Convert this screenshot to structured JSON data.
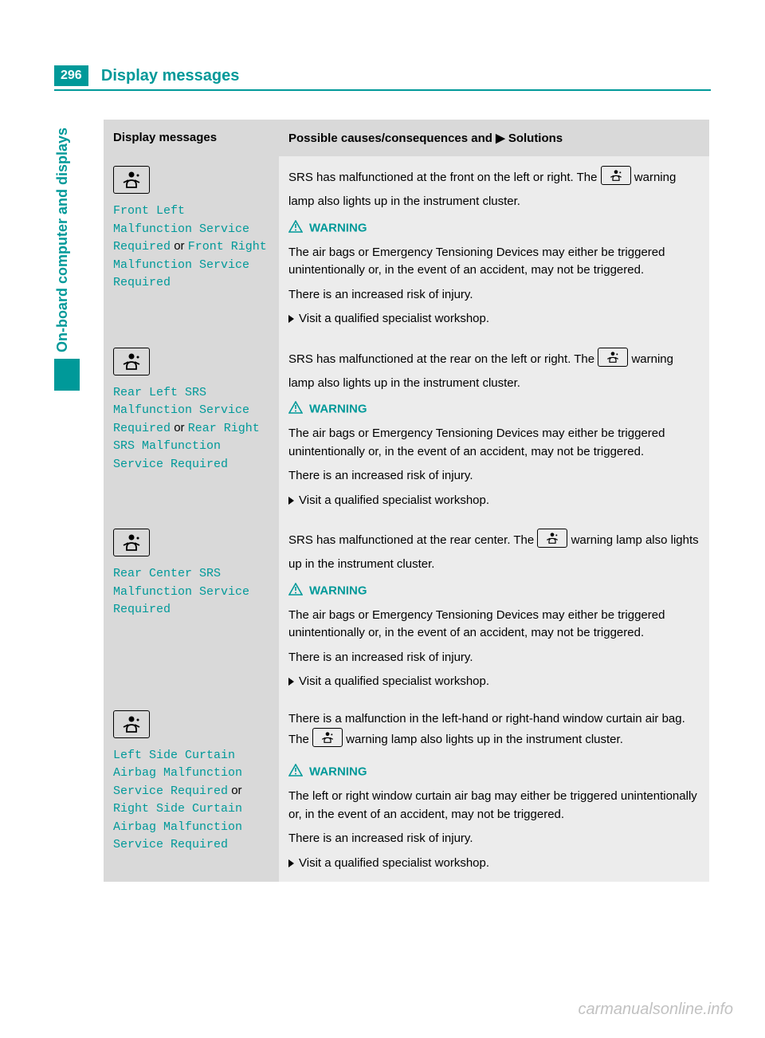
{
  "page": {
    "number": "296",
    "title": "Display messages",
    "sideLabel": "On-board computer and displays"
  },
  "table": {
    "headers": {
      "left": "Display messages",
      "right": "Possible causes/consequences and ▶ Solutions"
    },
    "warningLabel": "WARNING",
    "rows": [
      {
        "msg1": "Front Left Malfunction Service Required",
        "or": "or",
        "msg2": "Front Right Malfunction Service Required",
        "intro1": "SRS has malfunctioned at the front on the left or right. The ",
        "intro2": " warning lamp also lights up in the instrument cluster.",
        "warn1": "The air bags or Emergency Tensioning Devices may either be triggered unintentionally or, in the event of an accident, may not be triggered.",
        "warn2": "There is an increased risk of injury.",
        "sol": "Visit a qualified specialist workshop."
      },
      {
        "msg1": "Rear Left SRS Malfunction Service Required",
        "or": "or",
        "msg2": "Rear Right SRS Malfunction Service Required",
        "intro1": "SRS has malfunctioned at the rear on the left or right. The ",
        "intro2": " warning lamp also lights up in the instrument cluster.",
        "warn1": "The air bags or Emergency Tensioning Devices may either be triggered unintentionally or, in the event of an accident, may not be triggered.",
        "warn2": "There is an increased risk of injury.",
        "sol": "Visit a qualified specialist workshop."
      },
      {
        "msg1": "Rear Center SRS Malfunction Service Required",
        "or": "",
        "msg2": "",
        "intro1": "SRS has malfunctioned at the rear center. The ",
        "intro2": " warning lamp also lights up in the instrument cluster.",
        "warn1": "The air bags or Emergency Tensioning Devices may either be triggered unintentionally or, in the event of an accident, may not be triggered.",
        "warn2": "There is an increased risk of injury.",
        "sol": "Visit a qualified specialist workshop."
      },
      {
        "msg1": "Left Side Curtain Airbag Malfunction Service Required",
        "or": "or",
        "msg2": "Right Side Curtain Airbag Malfunction Service Required",
        "intro1": "There is a malfunction in the left-hand or right-hand window curtain air bag. The ",
        "intro2": " warning lamp also lights up in the instrument cluster.",
        "warn1": "The left or right window curtain air bag may either be triggered unintentionally or, in the event of an accident, may not be triggered.",
        "warn2": "There is an increased risk of injury.",
        "sol": "Visit a qualified specialist workshop."
      }
    ]
  },
  "watermark": "carmanualsonline.info",
  "glyphs": {
    "srs": "⦿⚲",
    "triangle": "⚠"
  },
  "colors": {
    "accent": "#009999",
    "leftCol": "#d9d9d9",
    "rightCol": "#ececec"
  }
}
